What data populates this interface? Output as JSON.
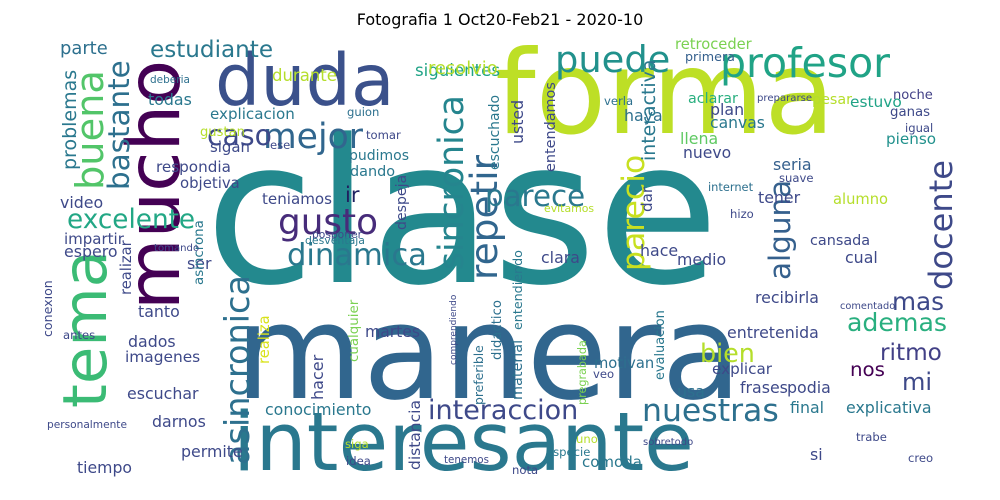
{
  "title": "Fotografia 1 Oct20-Feb21 - 2020-10",
  "words": [
    {
      "text": "clase",
      "color": "#23898e"
    },
    {
      "text": "manera",
      "color": "#31668e"
    },
    {
      "text": "forma",
      "color": "#bddf26"
    },
    {
      "text": "interesante",
      "color": "#2a788e"
    },
    {
      "text": "duda",
      "color": "#3b518b"
    },
    {
      "text": "mucho",
      "color": "#440154"
    },
    {
      "text": "tema",
      "color": "#3bbb75"
    },
    {
      "text": "profesor",
      "color": "#20a386"
    },
    {
      "text": "puede",
      "color": "#21918c"
    },
    {
      "text": "gusto",
      "color": "#472c7a"
    },
    {
      "text": "mejor",
      "color": "#31668e"
    },
    {
      "text": "buena",
      "color": "#52c569"
    },
    {
      "text": "bastante",
      "color": "#2d708e"
    },
    {
      "text": "caso",
      "color": "#3e4989"
    },
    {
      "text": "estudiante",
      "color": "#2a788e"
    },
    {
      "text": "dinamica",
      "color": "#2a788e"
    },
    {
      "text": "excelente",
      "color": "#22a785"
    },
    {
      "text": "repetir",
      "color": "#31668e"
    },
    {
      "text": "sincronica",
      "color": "#25858e"
    },
    {
      "text": "parece",
      "color": "#2a788e"
    },
    {
      "text": "parecio",
      "color": "#c8e020"
    },
    {
      "text": "alguna",
      "color": "#35608d"
    },
    {
      "text": "docente",
      "color": "#3e4989"
    },
    {
      "text": "bien",
      "color": "#b5de2b"
    },
    {
      "text": "ademas",
      "color": "#29af7f"
    },
    {
      "text": "ritmo",
      "color": "#424086"
    },
    {
      "text": "nos",
      "color": "#440154"
    },
    {
      "text": "mi",
      "color": "#3e4989"
    },
    {
      "text": "mas",
      "color": "#3e4989"
    },
    {
      "text": "asincronica",
      "color": "#2d708e"
    },
    {
      "text": "interaccion",
      "color": "#3e4989"
    },
    {
      "text": "nuestras",
      "color": "#2d708e"
    },
    {
      "text": "ir",
      "color": "#1f1f5f"
    },
    {
      "text": "problemas",
      "color": "#2a788e"
    },
    {
      "text": "parte",
      "color": "#2d708e"
    },
    {
      "text": "durante",
      "color": "#b5de2b"
    },
    {
      "text": "siguientes",
      "color": "#20a386"
    },
    {
      "text": "resolvio",
      "color": "#b5de2b"
    },
    {
      "text": "retroceder",
      "color": "#7ad151"
    },
    {
      "text": "primera",
      "color": "#35608d"
    },
    {
      "text": "aclarar",
      "color": "#29af7f"
    },
    {
      "text": "estuvo",
      "color": "#20a386"
    },
    {
      "text": "noche",
      "color": "#424086"
    },
    {
      "text": "ganas",
      "color": "#3e4989"
    },
    {
      "text": "pienso",
      "color": "#21918c"
    },
    {
      "text": "pesar",
      "color": "#b5de2b"
    },
    {
      "text": "plan",
      "color": "#3e4989"
    },
    {
      "text": "canvas",
      "color": "#2a788e"
    },
    {
      "text": "llena",
      "color": "#5ec962"
    },
    {
      "text": "nuevo",
      "color": "#3e4989"
    },
    {
      "text": "haya",
      "color": "#2d708e"
    },
    {
      "text": "usted",
      "color": "#3e4989"
    },
    {
      "text": "entendamos",
      "color": "#3e4989"
    },
    {
      "text": "escuchado",
      "color": "#2a788e"
    },
    {
      "text": "interactiva",
      "color": "#2a788e"
    },
    {
      "text": "seria",
      "color": "#35608d"
    },
    {
      "text": "tener",
      "color": "#3e4989"
    },
    {
      "text": "alumno",
      "color": "#b5de2b"
    },
    {
      "text": "cansada",
      "color": "#3e4989"
    },
    {
      "text": "cual",
      "color": "#3e4989"
    },
    {
      "text": "recibirla",
      "color": "#3e4989"
    },
    {
      "text": "entretenida",
      "color": "#3e4989"
    },
    {
      "text": "hace",
      "color": "#3e4989"
    },
    {
      "text": "medio",
      "color": "#3e4989"
    },
    {
      "text": "clara",
      "color": "#3e4989"
    },
    {
      "text": "dar",
      "color": "#3e4989"
    },
    {
      "text": "entendiendo",
      "color": "#2a788e"
    },
    {
      "text": "evaluacion",
      "color": "#2a788e"
    },
    {
      "text": "didactico",
      "color": "#2d708e"
    },
    {
      "text": "material",
      "color": "#2d708e"
    },
    {
      "text": "preferible",
      "color": "#2d708e"
    },
    {
      "text": "pregrabada",
      "color": "#7ad151"
    },
    {
      "text": "motivan",
      "color": "#2d708e"
    },
    {
      "text": "explicar",
      "color": "#3e4989"
    },
    {
      "text": "frases",
      "color": "#3e4989"
    },
    {
      "text": "usa",
      "color": "#2d708e"
    },
    {
      "text": "podia",
      "color": "#3e4989"
    },
    {
      "text": "explicativa",
      "color": "#2a788e"
    },
    {
      "text": "final",
      "color": "#2a788e"
    },
    {
      "text": "comoda",
      "color": "#2a788e"
    },
    {
      "text": "si",
      "color": "#3e4989"
    },
    {
      "text": "distancia",
      "color": "#3e4989"
    },
    {
      "text": "conocimiento",
      "color": "#2a788e"
    },
    {
      "text": "escuchar",
      "color": "#3e4989"
    },
    {
      "text": "darnos",
      "color": "#3e4989"
    },
    {
      "text": "permite",
      "color": "#3e4989"
    },
    {
      "text": "tiempo",
      "color": "#3e4989"
    },
    {
      "text": "hacer",
      "color": "#3e4989"
    },
    {
      "text": "martes",
      "color": "#3e4989"
    },
    {
      "text": "realiza",
      "color": "#d8e219"
    },
    {
      "text": "cualquier",
      "color": "#7ad151"
    },
    {
      "text": "imagenes",
      "color": "#3e4989"
    },
    {
      "text": "dados",
      "color": "#3e4989"
    },
    {
      "text": "tanto",
      "color": "#3e4989"
    },
    {
      "text": "realizar",
      "color": "#3e4989"
    },
    {
      "text": "ser",
      "color": "#3e4989"
    },
    {
      "text": "espero",
      "color": "#3e4989"
    },
    {
      "text": "impartir",
      "color": "#3e4989"
    },
    {
      "text": "video",
      "color": "#3e4989"
    },
    {
      "text": "objetiva",
      "color": "#3e4989"
    },
    {
      "text": "respondia",
      "color": "#3e4989"
    },
    {
      "text": "sigan",
      "color": "#3e4989"
    },
    {
      "text": "gustan",
      "color": "#b5de2b"
    },
    {
      "text": "explicacion",
      "color": "#2a788e"
    },
    {
      "text": "todas",
      "color": "#2a788e"
    },
    {
      "text": "pudimos",
      "color": "#2a788e"
    },
    {
      "text": "dando",
      "color": "#2a788e"
    },
    {
      "text": "despeja",
      "color": "#3e4989"
    },
    {
      "text": "teniamos",
      "color": "#3e4989"
    },
    {
      "text": "asincrona",
      "color": "#2a788e"
    },
    {
      "text": "deberia",
      "color": "#2d708e"
    },
    {
      "text": "guion",
      "color": "#2d708e"
    },
    {
      "text": "tomar",
      "color": "#3e4989"
    },
    {
      "text": "ese",
      "color": "#3e4989"
    },
    {
      "text": "verla",
      "color": "#2d708e"
    },
    {
      "text": "prepararse",
      "color": "#3e4989"
    },
    {
      "text": "igual",
      "color": "#3e4989"
    },
    {
      "text": "internet",
      "color": "#2d708e"
    },
    {
      "text": "suave",
      "color": "#3e4989"
    },
    {
      "text": "evitamos",
      "color": "#b5de2b"
    },
    {
      "text": "hizo",
      "color": "#3e4989"
    },
    {
      "text": "posponer",
      "color": "#3e4989"
    },
    {
      "text": "tomando",
      "color": "#3e4989"
    },
    {
      "text": "desventaja",
      "color": "#2a788e"
    },
    {
      "text": "conexion",
      "color": "#3e4989"
    },
    {
      "text": "antes",
      "color": "#3e4989"
    },
    {
      "text": "comprendiendo",
      "color": "#3e4989"
    },
    {
      "text": "comentado",
      "color": "#3e4989"
    },
    {
      "text": "veo",
      "color": "#3e4989"
    },
    {
      "text": "personalmente",
      "color": "#3e4989"
    },
    {
      "text": "siga",
      "color": "#b5de2b"
    },
    {
      "text": "idea",
      "color": "#3e4989"
    },
    {
      "text": "tenemos",
      "color": "#3e4989"
    },
    {
      "text": "especie",
      "color": "#2a788e"
    },
    {
      "text": "nota",
      "color": "#3e4989"
    },
    {
      "text": "uno",
      "color": "#b5de2b"
    },
    {
      "text": "sobretodo",
      "color": "#3e4989"
    },
    {
      "text": "trabe",
      "color": "#3e4989"
    },
    {
      "text": "creo",
      "color": "#3e4989"
    }
  ]
}
